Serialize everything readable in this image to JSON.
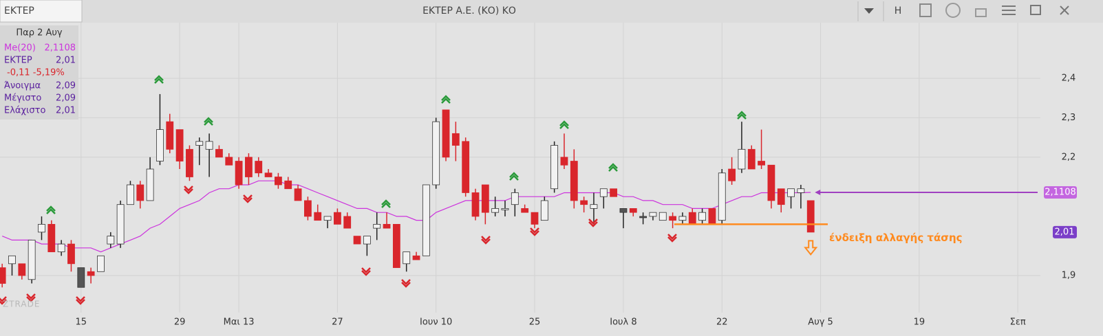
{
  "toolbar": {
    "symbol": "ΕΚΤΕΡ",
    "title": "ΕΚΤΕΡ Α.Ε. (ΚΟ) ΚΟ",
    "h_button": "H"
  },
  "info_panel": {
    "date": "Παρ 2 Αυγ",
    "change": "-0,11 -5,19%",
    "rows": [
      {
        "label": "Άνοιγμα",
        "value": "2,09"
      },
      {
        "label": "Μέγιστο",
        "value": "2,09"
      },
      {
        "label": "Ελάχιστο",
        "value": "2,01"
      }
    ]
  },
  "chart_data": {
    "type": "candlestick",
    "watermark": "ZTRADE",
    "categories": [
      null,
      null,
      null,
      null,
      null,
      null,
      null,
      null,
      "15",
      null,
      null,
      null,
      null,
      null,
      null,
      null,
      null,
      null,
      "29",
      null,
      null,
      null,
      null,
      null,
      "Μαι 13",
      null,
      null,
      null,
      null,
      null,
      null,
      null,
      null,
      null,
      "27",
      null,
      null,
      null,
      null,
      null,
      null,
      null,
      null,
      null,
      "Ιουν 10",
      null,
      null,
      null,
      null,
      null,
      null,
      null,
      null,
      null,
      "25",
      null,
      null,
      null,
      null,
      null,
      null,
      null,
      null,
      "Ιουλ 8",
      null,
      null,
      null,
      null,
      null,
      null,
      null,
      null,
      null,
      "22",
      null,
      null,
      null,
      null,
      null,
      null,
      null,
      null,
      null,
      "Αυγ 5",
      null,
      null,
      null,
      null,
      null,
      null,
      null,
      null,
      null,
      "19",
      null,
      null,
      null,
      null,
      null,
      null,
      null,
      null,
      null,
      "Σεπ",
      null,
      null
    ],
    "ylim": [
      1.806,
      2.541
    ],
    "yticks": [
      {
        "value": 1.9,
        "label": "1,9"
      },
      {
        "value": 2.2,
        "label": "2,2"
      },
      {
        "value": 2.3,
        "label": "2,3"
      },
      {
        "value": 2.4,
        "label": "2,4"
      }
    ],
    "grid": true,
    "series": [
      {
        "name": "ΕΚΤΕΡ",
        "up_color": "#f2f2f2",
        "down_color": "#d9262c",
        "flat_color": "#555555",
        "badge_color": "#7b3fc8",
        "last_label": "2,01",
        "open": [
          1.92,
          1.93,
          1.93,
          1.89,
          2.01,
          2.03,
          1.96,
          1.98,
          1.87,
          1.91,
          1.91,
          1.98,
          1.98,
          2.08,
          2.13,
          2.09,
          2.19,
          2.29,
          2.27,
          2.22,
          2.23,
          2.22,
          2.22,
          2.2,
          2.19,
          2.2,
          2.19,
          2.16,
          2.15,
          2.14,
          2.12,
          2.09,
          2.06,
          2.04,
          2.06,
          2.05,
          2.0,
          1.98,
          2.02,
          2.03,
          2.03,
          1.93,
          1.95,
          1.95,
          2.13,
          2.32,
          2.26,
          2.24,
          2.11,
          2.13,
          2.06,
          2.07,
          2.08,
          2.07,
          2.06,
          2.04,
          2.12,
          2.2,
          2.19,
          2.09,
          2.07,
          2.1,
          2.12,
          2.06,
          2.07,
          2.05,
          2.05,
          2.04,
          2.05,
          2.04,
          2.06,
          2.04,
          2.07,
          2.04,
          2.17,
          2.17,
          2.22,
          2.19,
          2.18,
          2.12,
          2.1,
          2.11,
          2.09,
          null,
          null,
          null,
          null,
          null,
          null,
          null,
          null,
          null,
          null,
          null,
          null,
          null,
          null,
          null,
          null,
          null,
          null,
          null,
          null,
          null,
          null,
          null
        ],
        "high": [
          1.93,
          1.95,
          1.93,
          1.99,
          2.05,
          2.04,
          1.99,
          1.99,
          1.92,
          1.92,
          1.95,
          2.01,
          2.09,
          2.14,
          2.14,
          2.2,
          2.36,
          2.31,
          2.27,
          2.23,
          2.25,
          2.26,
          2.23,
          2.21,
          2.2,
          2.21,
          2.2,
          2.17,
          2.16,
          2.15,
          2.13,
          2.1,
          2.08,
          2.05,
          2.07,
          2.06,
          2.0,
          2.0,
          2.06,
          2.06,
          2.03,
          1.96,
          1.96,
          2.13,
          2.3,
          2.32,
          2.29,
          2.25,
          2.12,
          2.13,
          2.1,
          2.09,
          2.12,
          2.08,
          2.06,
          2.1,
          2.24,
          2.26,
          2.22,
          2.1,
          2.11,
          2.12,
          2.12,
          2.07,
          2.07,
          2.06,
          2.06,
          2.06,
          2.06,
          2.06,
          2.07,
          2.07,
          2.07,
          2.17,
          2.2,
          2.29,
          2.23,
          2.27,
          2.18,
          2.12,
          2.12,
          2.13,
          2.09,
          null,
          null,
          null,
          null,
          null,
          null,
          null,
          null,
          null,
          null,
          null,
          null,
          null,
          null,
          null,
          null,
          null,
          null,
          null,
          null,
          null,
          null,
          null
        ],
        "low": [
          1.87,
          1.9,
          1.89,
          1.88,
          1.99,
          1.96,
          1.95,
          1.91,
          1.87,
          1.88,
          1.91,
          1.97,
          1.97,
          2.08,
          2.07,
          2.09,
          2.18,
          2.21,
          2.17,
          2.14,
          2.18,
          2.15,
          2.2,
          2.18,
          2.12,
          2.13,
          2.15,
          2.15,
          2.12,
          2.12,
          2.09,
          2.04,
          2.04,
          2.02,
          2.03,
          2.02,
          1.98,
          1.95,
          1.99,
          2.02,
          1.92,
          1.91,
          1.94,
          1.95,
          2.12,
          2.19,
          2.19,
          2.1,
          2.04,
          2.03,
          2.05,
          2.05,
          2.05,
          2.06,
          2.02,
          2.04,
          2.11,
          2.17,
          2.07,
          2.06,
          2.03,
          2.07,
          2.1,
          2.02,
          2.05,
          2.03,
          2.04,
          2.04,
          2.02,
          2.03,
          2.03,
          2.03,
          2.03,
          2.03,
          2.13,
          2.16,
          2.17,
          2.17,
          2.07,
          2.06,
          2.07,
          2.07,
          2.01,
          null,
          null,
          null,
          null,
          null,
          null,
          null,
          null,
          null,
          null,
          null,
          null,
          null,
          null,
          null,
          null,
          null,
          null,
          null,
          null,
          null,
          null,
          null
        ],
        "close": [
          1.88,
          1.95,
          1.9,
          1.99,
          2.03,
          1.96,
          1.98,
          1.93,
          1.92,
          1.9,
          1.95,
          2.0,
          2.08,
          2.13,
          2.09,
          2.17,
          2.27,
          2.22,
          2.19,
          2.15,
          2.24,
          2.24,
          2.2,
          2.18,
          2.13,
          2.15,
          2.16,
          2.15,
          2.13,
          2.12,
          2.09,
          2.05,
          2.04,
          2.05,
          2.03,
          2.02,
          1.98,
          2.0,
          2.03,
          2.02,
          1.92,
          1.96,
          1.94,
          2.13,
          2.29,
          2.2,
          2.23,
          2.11,
          2.05,
          2.06,
          2.07,
          2.07,
          2.11,
          2.06,
          2.03,
          2.09,
          2.23,
          2.18,
          2.09,
          2.08,
          2.08,
          2.12,
          2.1,
          2.07,
          2.06,
          2.05,
          2.06,
          2.06,
          2.04,
          2.05,
          2.03,
          2.06,
          2.03,
          2.16,
          2.14,
          2.22,
          2.17,
          2.18,
          2.09,
          2.08,
          2.12,
          2.12,
          2.01,
          null,
          null,
          null,
          null,
          null,
          null,
          null,
          null,
          null,
          null,
          null,
          null,
          null,
          null,
          null,
          null,
          null,
          null,
          null,
          null,
          null,
          null,
          null
        ]
      },
      {
        "name": "Me(20)",
        "color": "#cc33dd",
        "badge_color": "#c466e0",
        "last_label": "2,1108",
        "values": [
          2.0,
          1.99,
          1.99,
          1.99,
          1.98,
          1.98,
          1.98,
          1.97,
          1.97,
          1.97,
          1.96,
          1.97,
          1.98,
          1.99,
          2.0,
          2.02,
          2.03,
          2.05,
          2.07,
          2.08,
          2.09,
          2.11,
          2.12,
          2.12,
          2.13,
          2.13,
          2.14,
          2.14,
          2.14,
          2.13,
          2.13,
          2.12,
          2.11,
          2.1,
          2.09,
          2.08,
          2.07,
          2.07,
          2.06,
          2.06,
          2.05,
          2.05,
          2.04,
          2.04,
          2.06,
          2.07,
          2.08,
          2.09,
          2.09,
          2.09,
          2.09,
          2.09,
          2.1,
          2.1,
          2.1,
          2.1,
          2.1,
          2.11,
          2.11,
          2.11,
          2.11,
          2.11,
          2.11,
          2.1,
          2.1,
          2.09,
          2.09,
          2.08,
          2.08,
          2.08,
          2.07,
          2.07,
          2.07,
          2.08,
          2.09,
          2.1,
          2.1,
          2.11,
          2.11,
          2.11,
          2.11,
          2.11,
          2.1108,
          null,
          null,
          null,
          null,
          null,
          null,
          null,
          null,
          null,
          null,
          null,
          null,
          null,
          null,
          null,
          null,
          null,
          null,
          null,
          null,
          null,
          null,
          null
        ]
      }
    ],
    "annotation": {
      "text": "ένδειξη αλλαγής τάσης",
      "level": 2.03,
      "color": "#ff8a1e"
    }
  }
}
